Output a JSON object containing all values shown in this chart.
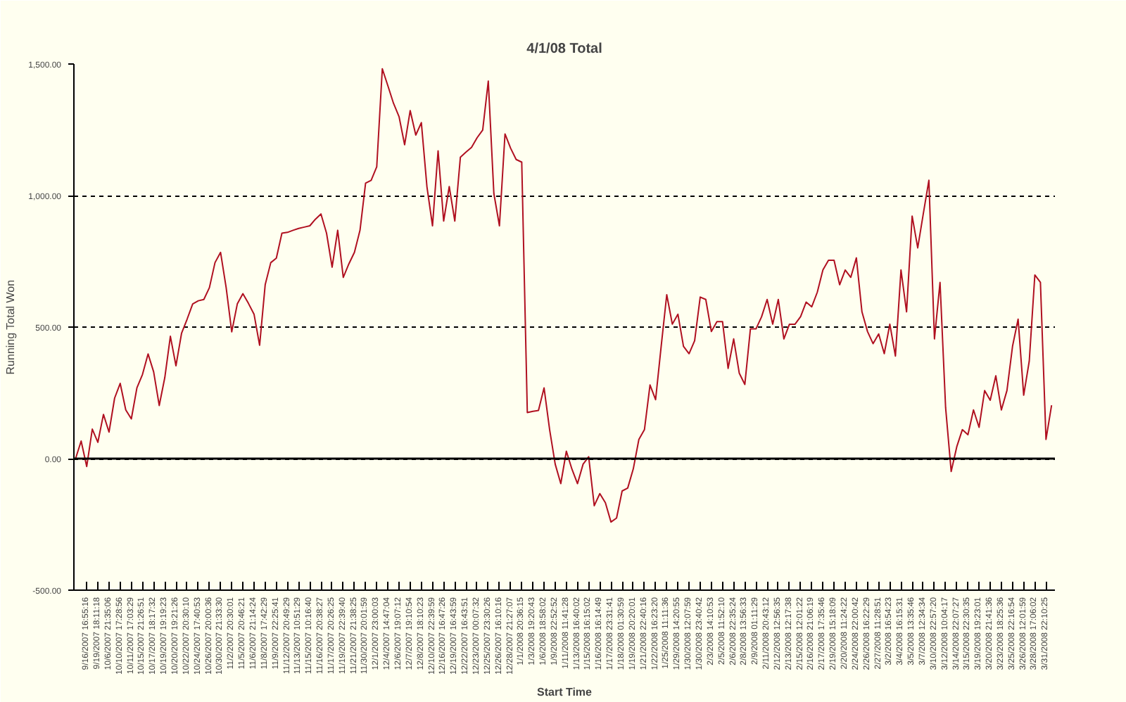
{
  "chart_data": {
    "type": "line",
    "title": "4/1/08 Total",
    "xlabel": "Start Time",
    "ylabel": "Running Total Won",
    "ylim": [
      -500,
      1500
    ],
    "yticks": [
      {
        "value": -500,
        "label": "-500.00"
      },
      {
        "value": 0,
        "label": "0.00"
      },
      {
        "value": 500,
        "label": "500.00"
      },
      {
        "value": 1000,
        "label": "1,000.00"
      },
      {
        "value": 1500,
        "label": "1,500.00"
      }
    ],
    "categories": [
      null,
      null,
      "9/16/2007 16:55:16",
      null,
      "9/19/2007 18:11:18",
      null,
      "10/6/2007 21:35:06",
      null,
      "10/10/2007 17:28:56",
      null,
      "10/11/2007 17:03:29",
      null,
      "10/15/2007 21:26:51",
      null,
      "10/17/2007 18:17:32",
      null,
      "10/19/2007 19:19:23",
      null,
      "10/20/2007 19:21:26",
      null,
      "10/22/2007 20:30:10",
      null,
      "10/24/2007 17:40:53",
      null,
      "10/26/2007 20:00:36",
      null,
      "10/30/2007 21:33:30",
      null,
      "11/2/2007 20:30:01",
      null,
      "11/5/2007 20:46:21",
      null,
      "11/6/2007 21:14:24",
      null,
      "11/8/2007 17:42:29",
      null,
      "11/9/2007 22:25:41",
      null,
      "11/12/2007 20:49:29",
      null,
      "11/13/2007 10:51:29",
      null,
      "11/15/2007 10:16:40",
      null,
      "11/16/2007 20:38:27",
      null,
      "11/17/2007 20:26:25",
      null,
      "11/19/2007 22:39:40",
      null,
      "11/21/2007 21:38:25",
      null,
      "11/30/2007 20:01:59",
      null,
      "12/1/2007 23:00:03",
      null,
      "12/4/2007 14:47:04",
      null,
      "12/6/2007 19:07:12",
      null,
      "12/7/2007 19:10:54",
      null,
      "12/8/2007 18:10:23",
      null,
      "12/10/2007 22:39:59",
      null,
      "12/16/2007 16:47:26",
      null,
      "12/19/2007 16:43:59",
      null,
      "12/22/2007 16:43:51",
      null,
      "12/23/2007 00:07:32",
      null,
      "12/25/2007 23:30:26",
      null,
      "12/26/2007 16:10:16",
      null,
      "12/28/2007 21:27:07",
      null,
      "1/1/2008 20:36:15",
      null,
      "1/3/2008 19:20:43",
      null,
      "1/6/2008 18:58:02",
      null,
      "1/9/2008 22:52:52",
      null,
      "1/11/2008 11:41:28",
      null,
      "1/13/2008 16:40:02",
      null,
      "1/15/2008 16:15:02",
      null,
      "1/16/2008 16:14:49",
      null,
      "1/17/2008 23:31:41",
      null,
      "1/18/2008 01:30:59",
      null,
      "1/19/2008 20:20:01",
      null,
      "1/21/2008 22:40:16",
      null,
      "1/22/2008 16:23:20",
      null,
      "1/25/2008 11:11:36",
      null,
      "1/29/2008 14:20:55",
      null,
      "1/30/2008 12:07:59",
      null,
      "1/30/2008 23:40:42",
      null,
      "2/3/2008 14:10:53",
      null,
      "2/5/2008 11:52:10",
      null,
      "2/6/2008 22:35:24",
      null,
      "2/8/2008 13:56:33",
      null,
      "2/9/2008 01:11:29",
      null,
      "2/11/2008 20:43:12",
      null,
      "2/12/2008 12:56:35",
      null,
      "2/13/2008 12:17:38",
      null,
      "2/15/2008 12:01:22",
      null,
      "2/16/2008 21:06:19",
      null,
      "2/17/2008 17:35:46",
      null,
      "2/19/2008 15:18:09",
      null,
      "2/20/2008 11:24:22",
      null,
      "2/24/2008 22:00:42",
      null,
      "2/26/2008 16:22:29",
      null,
      "2/27/2008 11:28:51",
      null,
      "3/2/2008 16:54:23",
      null,
      "3/4/2008 16:15:31",
      null,
      "3/5/2008 13:35:46",
      null,
      "3/7/2008 12:34:34",
      null,
      "3/10/2008 22:57:20",
      null,
      "3/12/2008 10:04:17",
      null,
      "3/14/2008 22:07:27",
      null,
      "3/15/2008 22:30:35",
      null,
      "3/19/2008 19:23:01",
      null,
      "3/20/2008 21:41:36",
      null,
      "3/23/2008 18:25:36",
      null,
      "3/25/2008 22:16:54",
      null,
      "3/26/2008 12:01:59",
      null,
      "3/28/2008 17:06:02",
      null,
      "3/31/2008 22:10:25",
      null
    ],
    "grid": "y",
    "line_style": "solid",
    "marker": "none",
    "ref_lines": [
      {
        "axis": "y",
        "value": 0,
        "label": null,
        "color": "#000000",
        "line_style": "solid"
      }
    ],
    "series": [
      {
        "color": "#b01020",
        "values": [
          0,
          67,
          -30,
          112,
          62,
          168,
          101,
          230,
          286,
          185,
          151,
          269,
          320,
          398,
          330,
          202,
          308,
          465,
          353,
          476,
          530,
          588,
          600,
          605,
          650,
          745,
          784,
          650,
          482,
          588,
          627,
          590,
          549,
          431,
          661,
          745,
          762,
          857,
          860,
          868,
          875,
          880,
          885,
          910,
          930,
          857,
          728,
          868,
          689,
          740,
          784,
          868,
          1047,
          1058,
          1109,
          1482,
          1417,
          1351,
          1300,
          1193,
          1323,
          1230,
          1277,
          1034,
          885,
          1170,
          903,
          1034,
          903,
          1146,
          1165,
          1183,
          1220,
          1249,
          1435,
          1008,
          885,
          1234,
          1180,
          1137,
          1127,
          175,
          180,
          183,
          269,
          110,
          -21,
          -95,
          28,
          -40,
          -95,
          -21,
          7,
          -179,
          -133,
          -168,
          -241,
          -226,
          -123,
          -112,
          -39,
          73,
          110,
          280,
          224,
          427,
          623,
          511,
          549,
          427,
          399,
          448,
          614,
          605,
          483,
          521,
          521,
          343,
          455,
          325,
          282,
          493,
          493,
          539,
          605,
          511,
          605,
          455,
          511,
          511,
          540,
          595,
          577,
          633,
          717,
          754,
          754,
          661,
          717,
          689,
          763,
          558,
          483,
          437,
          474,
          399,
          511,
          390,
          717,
          558,
          922,
          801,
          931,
          1058,
          455,
          670,
          194,
          -49,
          45,
          110,
          91,
          185,
          119,
          259,
          222,
          315,
          185,
          259,
          427,
          530,
          241,
          371,
          698,
          670,
          73,
          203
        ]
      }
    ]
  }
}
